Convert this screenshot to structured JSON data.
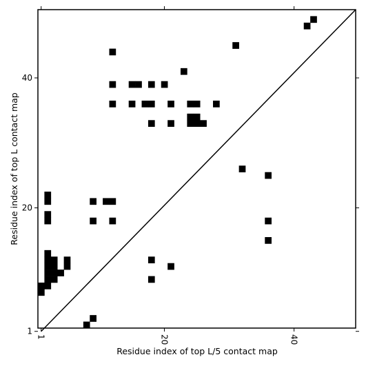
{
  "chart_data": {
    "type": "heatmap",
    "title": "",
    "xlabel": "Residue index of top L/5 contact map",
    "ylabel": "Residue index of top L contact map",
    "xlim": [
      0.5,
      49.5
    ],
    "ylim": [
      1.5,
      50.5
    ],
    "xticks": [
      1,
      20,
      40
    ],
    "yticks": [
      1,
      20,
      40
    ],
    "xtick_labels": [
      "1",
      "20",
      "40"
    ],
    "ytick_labels": [
      "1",
      "20",
      "40"
    ],
    "grid": false,
    "diagonal": true,
    "cell_color": "#000000",
    "cells": [
      [
        43,
        49
      ],
      [
        42,
        48
      ],
      [
        31,
        45
      ],
      [
        12,
        44
      ],
      [
        23,
        41
      ],
      [
        12,
        39
      ],
      [
        15,
        39
      ],
      [
        16,
        39
      ],
      [
        18,
        39
      ],
      [
        20,
        39
      ],
      [
        12,
        36
      ],
      [
        15,
        36
      ],
      [
        17,
        36
      ],
      [
        18,
        36
      ],
      [
        21,
        36
      ],
      [
        24,
        36
      ],
      [
        25,
        36
      ],
      [
        28,
        36
      ],
      [
        24,
        34
      ],
      [
        25,
        34
      ],
      [
        24,
        33
      ],
      [
        25,
        33
      ],
      [
        26,
        33
      ],
      [
        18,
        33
      ],
      [
        21,
        33
      ],
      [
        32,
        26
      ],
      [
        36,
        25
      ],
      [
        2,
        22
      ],
      [
        2,
        21
      ],
      [
        9,
        21
      ],
      [
        11,
        21
      ],
      [
        12,
        21
      ],
      [
        2,
        19
      ],
      [
        2,
        18
      ],
      [
        9,
        18
      ],
      [
        12,
        18
      ],
      [
        36,
        18
      ],
      [
        36,
        15
      ],
      [
        2,
        13
      ],
      [
        2,
        12
      ],
      [
        3,
        12
      ],
      [
        5,
        12
      ],
      [
        2,
        11
      ],
      [
        3,
        11
      ],
      [
        5,
        11
      ],
      [
        18,
        12
      ],
      [
        2,
        10
      ],
      [
        3,
        10
      ],
      [
        4,
        10
      ],
      [
        21,
        11
      ],
      [
        2,
        9
      ],
      [
        3,
        9
      ],
      [
        18,
        9
      ],
      [
        1,
        8
      ],
      [
        2,
        8
      ],
      [
        1,
        7
      ],
      [
        9,
        3
      ],
      [
        8,
        2
      ]
    ]
  }
}
